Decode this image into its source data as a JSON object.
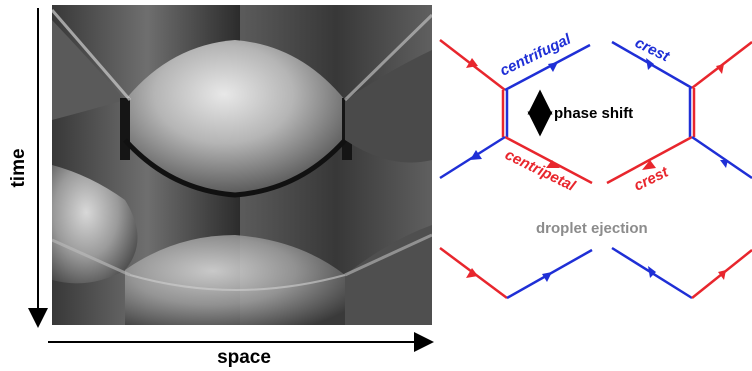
{
  "axes": {
    "x_label": "space",
    "y_label": "time"
  },
  "labels": {
    "centrifugal": "centrifugal",
    "crest_top": "crest",
    "phase_shift": "phase shift",
    "centripetal": "centripetal",
    "crest_bottom": "crest",
    "droplet_ejection": "droplet ejection"
  },
  "colors": {
    "red": "#e8262d",
    "blue": "#1f2fd6",
    "gray_text": "#8c8c8c",
    "black": "#000000"
  },
  "icons": {
    "phase_shift_arrow": "double-headed-vertical-arrow-icon"
  }
}
